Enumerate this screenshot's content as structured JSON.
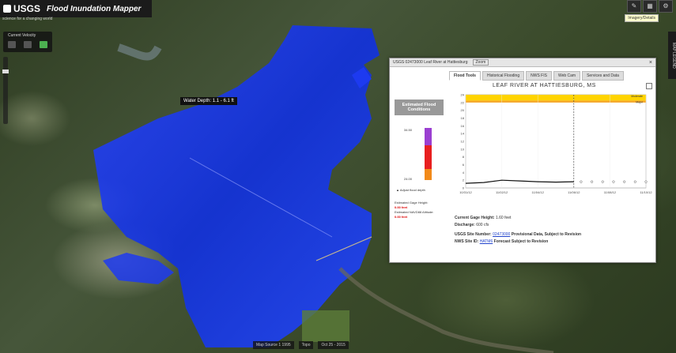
{
  "app": {
    "logo_text": "USGS",
    "title": "Flood Inundation Mapper",
    "subtitle": "science for a changing world"
  },
  "time_control": {
    "label": "Current Velocity"
  },
  "toolbar": {
    "tooltip": "Imagery/Details"
  },
  "side_panel": {
    "label": "MAP LEGEND"
  },
  "map": {
    "water_depth_label": "Water Depth: 1.1 - 6.1 ft"
  },
  "popup": {
    "header_title": "USGS 02473000 Leaf River at Hattiesburg",
    "zoom_label": "Zoom",
    "close_label": "×",
    "tabs": [
      "Flood Tools",
      "Historical Flooding",
      "NWS FIS",
      "Web Cam",
      "Services and Data"
    ],
    "estimated_box": "Estimated Flood Conditions",
    "gauge_top_label": "34.50",
    "gauge_bottom_label": "24.00",
    "adjust_label": "Adjust flood depth",
    "est_gage_label": "Estimated Gage Height:",
    "est_gage_value": "0.00 feet",
    "est_elev_label": "Estimated NAVD88 Altitude:",
    "est_elev_value": "0.00 feet",
    "chart_title": "LEAF RIVER AT HATTIESBURG, MS",
    "current_gage_label": "Current Gage Height:",
    "current_gage_value": "1.60 feet",
    "discharge_label": "Discharge:",
    "discharge_value": "600 cfs",
    "site_number_label": "USGS Site Number:",
    "site_number_value": "02473000",
    "provisional_text": "Provisional Data, Subject to Revision",
    "nws_label": "NWS Site ID:",
    "nws_value": "HATM6",
    "forecast_text": "Forecast Subject to Revision"
  },
  "bottom": {
    "chips": [
      "Map Source 1 1995",
      "Topo",
      "Oct 25 - 2015"
    ]
  },
  "colors": {
    "flood": "#1b3cff",
    "flood_dark": "#0a1fd6",
    "gauge_purple": "#9b3fd1",
    "gauge_red": "#e81f1f",
    "gauge_orange": "#f28a1a",
    "stage_yellow": "#ffd400",
    "stage_orange": "#f5a623"
  },
  "chart_data": {
    "type": "line",
    "title": "LEAF RIVER AT HATTIESBURG, MS",
    "x_labels": [
      "10/31/12",
      "11/02/12",
      "11/04/12",
      "11/06/12",
      "11/08/12",
      "11/10/12"
    ],
    "y_ticks": [
      0,
      2,
      4,
      6,
      8,
      10,
      12,
      14,
      16,
      18,
      20,
      22,
      24
    ],
    "ylim": [
      0,
      24
    ],
    "observed": {
      "x": [
        0,
        0.5,
        1,
        1.5,
        2,
        2.5,
        3
      ],
      "y": [
        1.2,
        1.4,
        2.0,
        1.8,
        1.6,
        1.5,
        1.6
      ]
    },
    "forecast": {
      "x": [
        3.2,
        3.5,
        3.8,
        4.1,
        4.4,
        4.7,
        5.0
      ],
      "y": [
        1.6,
        1.6,
        1.6,
        1.6,
        1.6,
        1.6,
        1.6
      ]
    },
    "stage_bands": [
      {
        "label": "Moderate",
        "from": 22.5,
        "to": 24
      },
      {
        "label": "Major",
        "from": 22,
        "to": 22.5
      }
    ],
    "divider_x": 3
  }
}
